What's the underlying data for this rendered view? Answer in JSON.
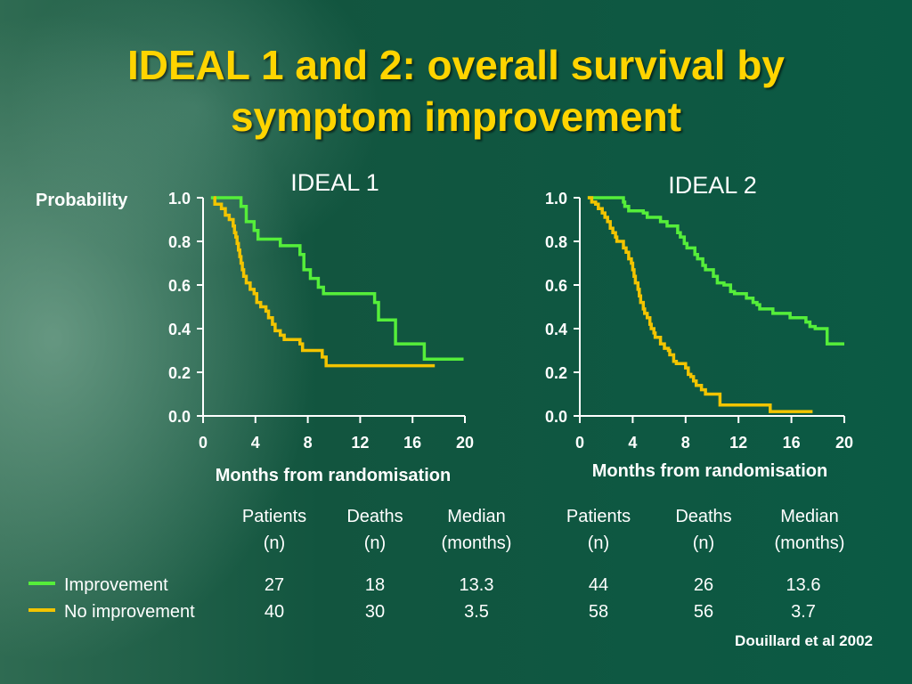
{
  "slide": {
    "title_line1": "IDEAL 1 and 2: overall survival by",
    "title_line2": "symptom improvement",
    "citation": "Douillard et al 2002"
  },
  "colors": {
    "improvement": "#55ee3a",
    "no_improvement": "#f2c400",
    "title": "#ffd400",
    "axis": "#ffffff"
  },
  "chart_data": [
    {
      "type": "line",
      "subtype": "kaplan-meier step",
      "title": "IDEAL 1",
      "ylabel": "Probability",
      "xlabel": "Months from randomisation",
      "xlim": [
        0,
        20
      ],
      "ylim": [
        0,
        1.0
      ],
      "xticks": [
        "0",
        "4",
        "8",
        "12",
        "16",
        "20"
      ],
      "yticks": [
        "0.0",
        "0.2",
        "0.4",
        "0.6",
        "0.8",
        "1.0"
      ],
      "series": [
        {
          "name": "Improvement",
          "color": "#55ee3a",
          "points": [
            [
              0.6,
              1.0
            ],
            [
              2.9,
              1.0
            ],
            [
              2.9,
              0.96
            ],
            [
              3.3,
              0.96
            ],
            [
              3.3,
              0.89
            ],
            [
              3.9,
              0.89
            ],
            [
              3.9,
              0.85
            ],
            [
              4.2,
              0.85
            ],
            [
              4.2,
              0.81
            ],
            [
              5.9,
              0.81
            ],
            [
              5.9,
              0.78
            ],
            [
              7.4,
              0.78
            ],
            [
              7.4,
              0.74
            ],
            [
              7.7,
              0.74
            ],
            [
              7.7,
              0.67
            ],
            [
              8.2,
              0.67
            ],
            [
              8.2,
              0.63
            ],
            [
              8.8,
              0.63
            ],
            [
              8.8,
              0.59
            ],
            [
              9.2,
              0.59
            ],
            [
              9.2,
              0.56
            ],
            [
              13.1,
              0.56
            ],
            [
              13.1,
              0.52
            ],
            [
              13.4,
              0.52
            ],
            [
              13.4,
              0.44
            ],
            [
              14.7,
              0.44
            ],
            [
              14.7,
              0.33
            ],
            [
              16.9,
              0.33
            ],
            [
              16.9,
              0.26
            ],
            [
              19.9,
              0.26
            ]
          ]
        },
        {
          "name": "No improvement",
          "color": "#f2c400",
          "points": [
            [
              0.8,
              1.0
            ],
            [
              0.9,
              0.97
            ],
            [
              1.4,
              0.95
            ],
            [
              1.7,
              0.92
            ],
            [
              2.0,
              0.9
            ],
            [
              2.3,
              0.87
            ],
            [
              2.4,
              0.84
            ],
            [
              2.5,
              0.82
            ],
            [
              2.6,
              0.79
            ],
            [
              2.7,
              0.76
            ],
            [
              2.8,
              0.73
            ],
            [
              2.9,
              0.7
            ],
            [
              3.0,
              0.67
            ],
            [
              3.1,
              0.64
            ],
            [
              3.3,
              0.61
            ],
            [
              3.6,
              0.58
            ],
            [
              3.9,
              0.56
            ],
            [
              4.1,
              0.52
            ],
            [
              4.4,
              0.5
            ],
            [
              4.8,
              0.48
            ],
            [
              5.0,
              0.45
            ],
            [
              5.3,
              0.42
            ],
            [
              5.5,
              0.39
            ],
            [
              5.9,
              0.37
            ],
            [
              6.2,
              0.35
            ],
            [
              7.3,
              0.35
            ],
            [
              7.4,
              0.33
            ],
            [
              7.6,
              0.3
            ],
            [
              9.1,
              0.3
            ],
            [
              9.1,
              0.27
            ],
            [
              9.4,
              0.27
            ],
            [
              9.4,
              0.23
            ],
            [
              17.7,
              0.23
            ]
          ]
        }
      ]
    },
    {
      "type": "line",
      "subtype": "kaplan-meier step",
      "title": "IDEAL 2",
      "ylabel": "",
      "xlabel": "Months from randomisation",
      "xlim": [
        0,
        20
      ],
      "ylim": [
        0,
        1.0
      ],
      "xticks": [
        "0",
        "4",
        "8",
        "12",
        "16",
        "20"
      ],
      "yticks": [
        "0.0",
        "0.2",
        "0.4",
        "0.6",
        "0.8",
        "1.0"
      ],
      "series": [
        {
          "name": "Improvement",
          "color": "#55ee3a",
          "points": [
            [
              0.6,
              1.0
            ],
            [
              3.1,
              1.0
            ],
            [
              3.3,
              0.98
            ],
            [
              3.4,
              0.96
            ],
            [
              3.7,
              0.94
            ],
            [
              4.6,
              0.94
            ],
            [
              4.8,
              0.93
            ],
            [
              5.1,
              0.91
            ],
            [
              5.8,
              0.91
            ],
            [
              6.1,
              0.89
            ],
            [
              6.6,
              0.87
            ],
            [
              7.4,
              0.84
            ],
            [
              7.6,
              0.82
            ],
            [
              7.9,
              0.79
            ],
            [
              8.1,
              0.77
            ],
            [
              8.7,
              0.74
            ],
            [
              8.9,
              0.72
            ],
            [
              9.3,
              0.69
            ],
            [
              9.5,
              0.67
            ],
            [
              10.1,
              0.64
            ],
            [
              10.4,
              0.61
            ],
            [
              10.9,
              0.6
            ],
            [
              11.4,
              0.57
            ],
            [
              11.7,
              0.56
            ],
            [
              12.2,
              0.56
            ],
            [
              12.6,
              0.54
            ],
            [
              13.1,
              0.52
            ],
            [
              13.4,
              0.51
            ],
            [
              13.6,
              0.49
            ],
            [
              14.2,
              0.49
            ],
            [
              14.6,
              0.47
            ],
            [
              15.6,
              0.47
            ],
            [
              15.9,
              0.45
            ],
            [
              16.8,
              0.45
            ],
            [
              17.1,
              0.43
            ],
            [
              17.4,
              0.41
            ],
            [
              17.8,
              0.4
            ],
            [
              18.7,
              0.4
            ],
            [
              18.7,
              0.33
            ],
            [
              20.0,
              0.33
            ]
          ]
        },
        {
          "name": "No improvement",
          "color": "#f2c400",
          "points": [
            [
              0.6,
              1.0
            ],
            [
              0.9,
              0.98
            ],
            [
              1.2,
              0.97
            ],
            [
              1.4,
              0.95
            ],
            [
              1.7,
              0.93
            ],
            [
              1.9,
              0.91
            ],
            [
              2.1,
              0.89
            ],
            [
              2.3,
              0.86
            ],
            [
              2.5,
              0.84
            ],
            [
              2.7,
              0.82
            ],
            [
              2.8,
              0.8
            ],
            [
              3.1,
              0.8
            ],
            [
              3.3,
              0.77
            ],
            [
              3.5,
              0.75
            ],
            [
              3.7,
              0.72
            ],
            [
              3.9,
              0.7
            ],
            [
              4.0,
              0.67
            ],
            [
              4.1,
              0.64
            ],
            [
              4.2,
              0.61
            ],
            [
              4.4,
              0.58
            ],
            [
              4.5,
              0.55
            ],
            [
              4.6,
              0.52
            ],
            [
              4.8,
              0.49
            ],
            [
              4.9,
              0.47
            ],
            [
              5.1,
              0.45
            ],
            [
              5.3,
              0.42
            ],
            [
              5.4,
              0.4
            ],
            [
              5.6,
              0.38
            ],
            [
              5.7,
              0.36
            ],
            [
              6.1,
              0.33
            ],
            [
              6.4,
              0.31
            ],
            [
              6.7,
              0.3
            ],
            [
              6.8,
              0.28
            ],
            [
              7.1,
              0.25
            ],
            [
              7.3,
              0.24
            ],
            [
              7.8,
              0.24
            ],
            [
              8.0,
              0.22
            ],
            [
              8.2,
              0.19
            ],
            [
              8.4,
              0.18
            ],
            [
              8.6,
              0.16
            ],
            [
              8.8,
              0.14
            ],
            [
              9.2,
              0.12
            ],
            [
              9.5,
              0.1
            ],
            [
              10.5,
              0.1
            ],
            [
              10.6,
              0.05
            ],
            [
              14.4,
              0.05
            ],
            [
              14.4,
              0.02
            ],
            [
              17.6,
              0.02
            ]
          ]
        }
      ]
    }
  ],
  "table": {
    "headers": [
      {
        "line1": "Patients",
        "line2": "(n)"
      },
      {
        "line1": "Deaths",
        "line2": "(n)"
      },
      {
        "line1": "Median",
        "line2": "(months)"
      },
      {
        "line1": "Patients",
        "line2": "(n)"
      },
      {
        "line1": "Deaths",
        "line2": "(n)"
      },
      {
        "line1": "Median",
        "line2": "(months)"
      }
    ],
    "rows": [
      {
        "label": "Improvement",
        "values": [
          "27",
          "18",
          "13.3",
          "44",
          "26",
          "13.6"
        ]
      },
      {
        "label": "No improvement",
        "values": [
          "40",
          "30",
          "3.5",
          "58",
          "56",
          "3.7"
        ]
      }
    ]
  }
}
